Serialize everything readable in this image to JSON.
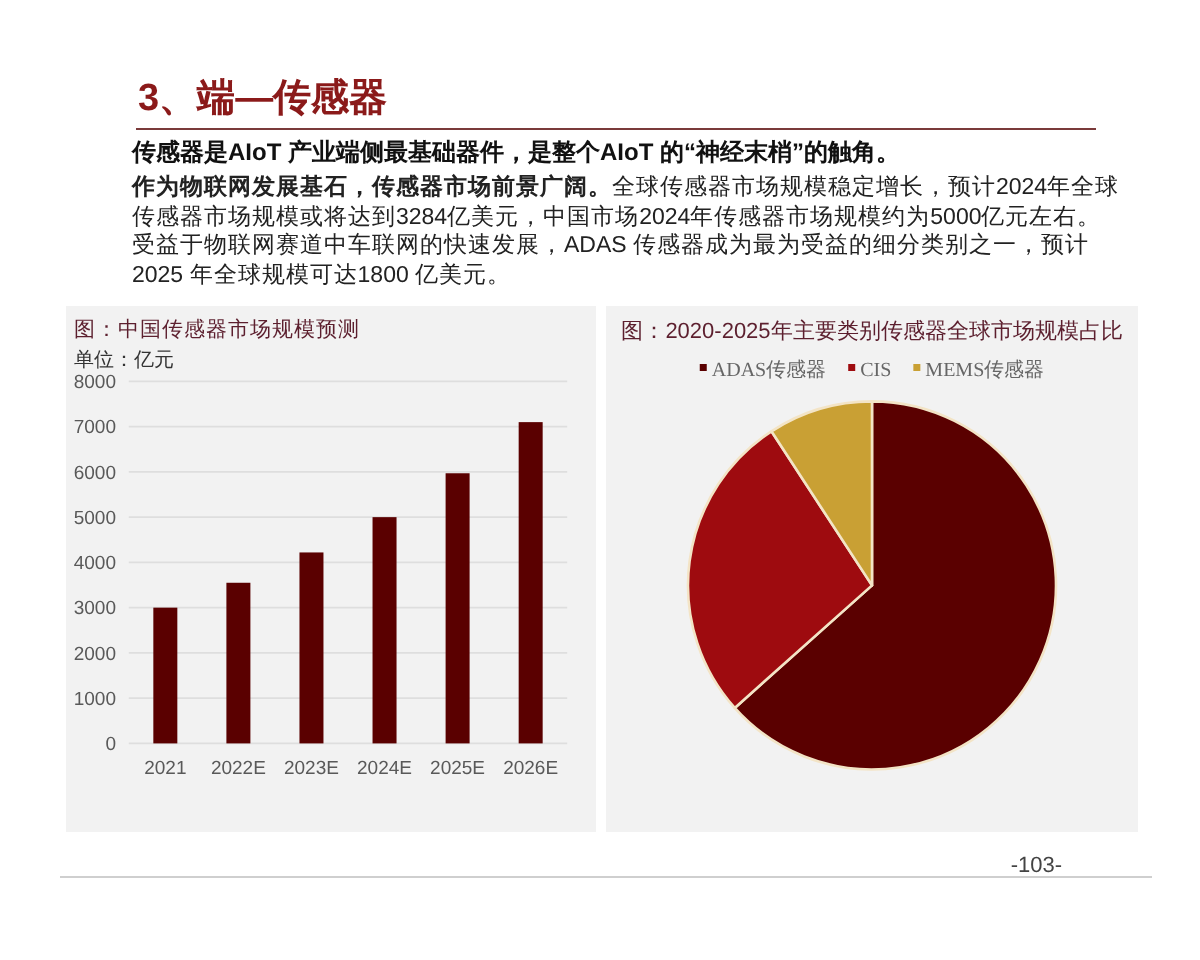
{
  "chart_data": [
    {
      "type": "other",
      "title": "3、端—传感器",
      "subtitle": "传感器是AIoT 产业端侧最基础器件，是整个AIoT 的“神经末梢”的触角。",
      "annotations": [
        "**作为物联网发展基石，传感器市场前景广阔。**全球传感器市场规模稳定增长，预计2024年全球传感器市场规模或将达到3284亿美元，中国市场2024年传感器市场规模约为5000亿元左右。受益于物联网赛道中车联网的快速发展，ADAS 传感器成为最为受益的细分类别之一，预计2025 年全球规模可达1800 亿美元。"
      ]
    },
    {
      "type": "bar",
      "title": "图：中国传感器市场规模预测",
      "ylabel": "单位：亿元",
      "categories": [
        "2021",
        "2022E",
        "2023E",
        "2024E",
        "2025E",
        "2026E"
      ],
      "values": [
        3000,
        3550,
        4220,
        5000,
        5970,
        7100
      ],
      "color": "#5a0000",
      "ylim": [
        0,
        8000
      ],
      "yticks": [
        0,
        1000,
        2000,
        3000,
        4000,
        5000,
        6000,
        7000,
        8000
      ],
      "grid": "y"
    },
    {
      "type": "pie",
      "title": "图：2020-2025年主要类别传感器全球市场规模占比",
      "categories": [
        "ADAS传感器",
        "CIS",
        "MEMS传感器"
      ],
      "values": [
        63.4,
        27.4,
        9.2
      ],
      "colors": [
        "#5a0000",
        "#9e0b0f",
        "#c9a034"
      ],
      "legend": "top",
      "annotations": [
        "-103-"
      ]
    }
  ]
}
